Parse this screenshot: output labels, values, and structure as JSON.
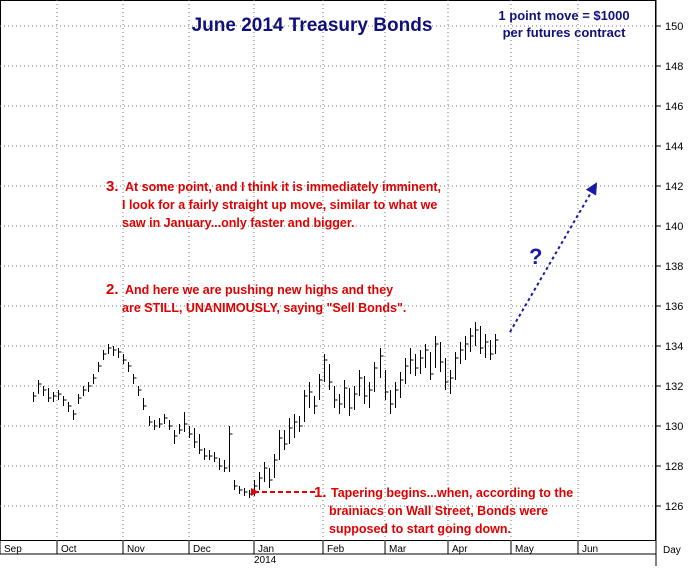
{
  "chart_data": {
    "type": "bar",
    "style": "OHLC daily bars",
    "title": "June 2014 Treasury Bonds",
    "note": [
      "1 point move = $1000",
      "per futures contract"
    ],
    "y_axis": {
      "position": "right",
      "ylim": [
        124.8,
        151.3
      ],
      "ticks": [
        126,
        128,
        130,
        132,
        134,
        136,
        138,
        140,
        142,
        144,
        146,
        148,
        150
      ]
    },
    "x_axis": {
      "months": [
        "Sep",
        "Oct",
        "Nov",
        "Dec",
        "Jan",
        "Feb",
        "Mar",
        "Apr",
        "May",
        "Jun"
      ],
      "year_label": "2014",
      "corner_label": "Day"
    },
    "grid": true,
    "colors": {
      "bars": "#000000",
      "title": "#10107a",
      "annotation": "#e00000",
      "arrow": "#1a1aa8",
      "grid": "#777777"
    },
    "annotations": {
      "a1": {
        "num": "1.",
        "lines": [
          "Tapering begins...when, according to the",
          "brainiacs on Wall Street, Bonds were",
          "supposed to start going down."
        ]
      },
      "a2": {
        "num": "2.",
        "lines": [
          "And here we are pushing new highs and they",
          "are STILL, UNANIMOUSLY, saying \"Sell Bonds\"."
        ]
      },
      "a3": {
        "num": "3.",
        "lines": [
          "At some point, and I think it is immediately imminent,",
          "I look for a fairly straight up move, similar to what we",
          "saw in January...only faster and bigger."
        ]
      },
      "question": "?",
      "projection": {
        "from": {
          "date": "2014-04-28",
          "price": 134.7
        },
        "to": {
          "date": "2014-06-03",
          "price": 142.1
        }
      }
    },
    "series": [
      {
        "high": 131.7,
        "low": 131.2,
        "close": 131.5
      },
      {
        "high": 132.3,
        "low": 131.6,
        "close": 132.1
      },
      {
        "high": 132.0,
        "low": 131.5,
        "close": 131.8
      },
      {
        "high": 131.9,
        "low": 131.2,
        "close": 131.4
      },
      {
        "high": 131.7,
        "low": 131.2,
        "close": 131.5
      },
      {
        "high": 131.8,
        "low": 131.3,
        "close": 131.6
      },
      {
        "high": 131.5,
        "low": 131.0,
        "close": 131.3
      },
      {
        "high": 131.2,
        "low": 130.7,
        "close": 131.0
      },
      {
        "high": 130.8,
        "low": 130.3,
        "close": 130.6
      },
      {
        "high": 131.6,
        "low": 131.1,
        "close": 131.4
      },
      {
        "high": 132.0,
        "low": 131.5,
        "close": 131.8
      },
      {
        "high": 132.2,
        "low": 131.7,
        "close": 132.0
      },
      {
        "high": 132.6,
        "low": 132.1,
        "close": 132.4
      },
      {
        "high": 133.2,
        "low": 132.7,
        "close": 133.0
      },
      {
        "high": 133.8,
        "low": 133.3,
        "close": 133.6
      },
      {
        "high": 134.1,
        "low": 133.6,
        "close": 133.9
      },
      {
        "high": 134.0,
        "low": 133.5,
        "close": 133.8
      },
      {
        "high": 133.9,
        "low": 133.4,
        "close": 133.7
      },
      {
        "high": 133.6,
        "low": 133.1,
        "close": 133.3
      },
      {
        "high": 133.2,
        "low": 132.7,
        "close": 133.0
      },
      {
        "high": 132.6,
        "low": 132.1,
        "close": 132.4
      },
      {
        "high": 132.0,
        "low": 131.5,
        "close": 131.8
      },
      {
        "high": 131.4,
        "low": 130.8,
        "close": 131.0
      },
      {
        "high": 130.5,
        "low": 130.0,
        "close": 130.2
      },
      {
        "high": 130.3,
        "low": 129.8,
        "close": 130.0
      },
      {
        "high": 130.4,
        "low": 129.9,
        "close": 130.1
      },
      {
        "high": 130.6,
        "low": 130.1,
        "close": 130.4
      },
      {
        "high": 130.3,
        "low": 129.8,
        "close": 130.0
      },
      {
        "high": 129.8,
        "low": 129.1,
        "close": 129.5
      },
      {
        "high": 130.1,
        "low": 129.6,
        "close": 129.8
      },
      {
        "high": 130.7,
        "low": 129.7,
        "close": 130.1
      },
      {
        "high": 130.0,
        "low": 129.4,
        "close": 129.6
      },
      {
        "high": 129.9,
        "low": 128.9,
        "close": 129.2
      },
      {
        "high": 129.6,
        "low": 128.6,
        "close": 128.8
      },
      {
        "high": 128.9,
        "low": 128.3,
        "close": 128.5
      },
      {
        "high": 128.8,
        "low": 128.3,
        "close": 128.5
      },
      {
        "high": 128.7,
        "low": 128.2,
        "close": 128.4
      },
      {
        "high": 128.4,
        "low": 127.8,
        "close": 128.0
      },
      {
        "high": 128.3,
        "low": 127.7,
        "close": 127.9
      },
      {
        "high": 130.0,
        "low": 127.7,
        "close": 129.6
      },
      {
        "high": 127.3,
        "low": 126.8,
        "close": 127.0
      },
      {
        "high": 127.0,
        "low": 126.6,
        "close": 126.8
      },
      {
        "high": 126.9,
        "low": 126.5,
        "close": 126.7
      },
      {
        "high": 126.8,
        "low": 126.4,
        "close": 126.6
      },
      {
        "high": 127.3,
        "low": 126.5,
        "close": 127.0
      },
      {
        "high": 127.7,
        "low": 126.8,
        "close": 127.4
      },
      {
        "high": 128.2,
        "low": 127.2,
        "close": 127.9
      },
      {
        "high": 127.9,
        "low": 126.9,
        "close": 127.3
      },
      {
        "high": 128.6,
        "low": 127.4,
        "close": 128.3
      },
      {
        "high": 129.8,
        "low": 128.3,
        "close": 129.4
      },
      {
        "high": 129.8,
        "low": 128.8,
        "close": 129.1
      },
      {
        "high": 130.4,
        "low": 129.1,
        "close": 129.9
      },
      {
        "high": 130.6,
        "low": 129.4,
        "close": 130.2
      },
      {
        "high": 130.5,
        "low": 129.7,
        "close": 130.0
      },
      {
        "high": 131.8,
        "low": 130.2,
        "close": 131.5
      },
      {
        "high": 132.2,
        "low": 130.9,
        "close": 131.7
      },
      {
        "high": 131.5,
        "low": 130.6,
        "close": 131.0
      },
      {
        "high": 132.6,
        "low": 131.3,
        "close": 132.3
      },
      {
        "high": 133.6,
        "low": 132.2,
        "close": 133.3
      },
      {
        "high": 133.1,
        "low": 131.8,
        "close": 132.2
      },
      {
        "high": 132.0,
        "low": 130.9,
        "close": 131.3
      },
      {
        "high": 131.6,
        "low": 130.6,
        "close": 131.1
      },
      {
        "high": 132.3,
        "low": 130.9,
        "close": 131.9
      },
      {
        "high": 131.9,
        "low": 130.5,
        "close": 130.9
      },
      {
        "high": 132.0,
        "low": 130.8,
        "close": 131.6
      },
      {
        "high": 132.8,
        "low": 131.5,
        "close": 132.4
      },
      {
        "high": 132.5,
        "low": 131.1,
        "close": 131.5
      },
      {
        "high": 132.2,
        "low": 130.9,
        "close": 131.8
      },
      {
        "high": 133.2,
        "low": 131.7,
        "close": 132.9
      },
      {
        "high": 133.9,
        "low": 132.4,
        "close": 133.5
      },
      {
        "high": 132.8,
        "low": 131.3,
        "close": 131.7
      },
      {
        "high": 131.8,
        "low": 130.6,
        "close": 131.1
      },
      {
        "high": 132.2,
        "low": 130.9,
        "close": 131.8
      },
      {
        "high": 132.7,
        "low": 131.4,
        "close": 132.3
      },
      {
        "high": 133.4,
        "low": 132.1,
        "close": 133.0
      },
      {
        "high": 133.9,
        "low": 132.6,
        "close": 133.3
      },
      {
        "high": 133.6,
        "low": 132.5,
        "close": 132.9
      },
      {
        "high": 133.8,
        "low": 132.6,
        "close": 133.4
      },
      {
        "high": 134.1,
        "low": 132.9,
        "close": 133.8
      },
      {
        "high": 133.7,
        "low": 132.3,
        "close": 132.6
      },
      {
        "high": 134.5,
        "low": 132.9,
        "close": 134.1
      },
      {
        "high": 134.2,
        "low": 132.7,
        "close": 133.2
      },
      {
        "high": 133.4,
        "low": 131.8,
        "close": 132.2
      },
      {
        "high": 132.8,
        "low": 131.6,
        "close": 132.4
      },
      {
        "high": 133.7,
        "low": 132.3,
        "close": 133.4
      },
      {
        "high": 134.2,
        "low": 133.1,
        "close": 133.8
      },
      {
        "high": 134.5,
        "low": 133.3,
        "close": 134.1
      },
      {
        "high": 134.9,
        "low": 133.7,
        "close": 134.5
      },
      {
        "high": 135.2,
        "low": 134.0,
        "close": 134.8
      },
      {
        "high": 135.0,
        "low": 133.6,
        "close": 133.9
      },
      {
        "high": 134.6,
        "low": 133.4,
        "close": 134.2
      },
      {
        "high": 134.3,
        "low": 133.3,
        "close": 133.6
      },
      {
        "high": 134.6,
        "low": 133.6,
        "close": 134.3
      }
    ]
  }
}
